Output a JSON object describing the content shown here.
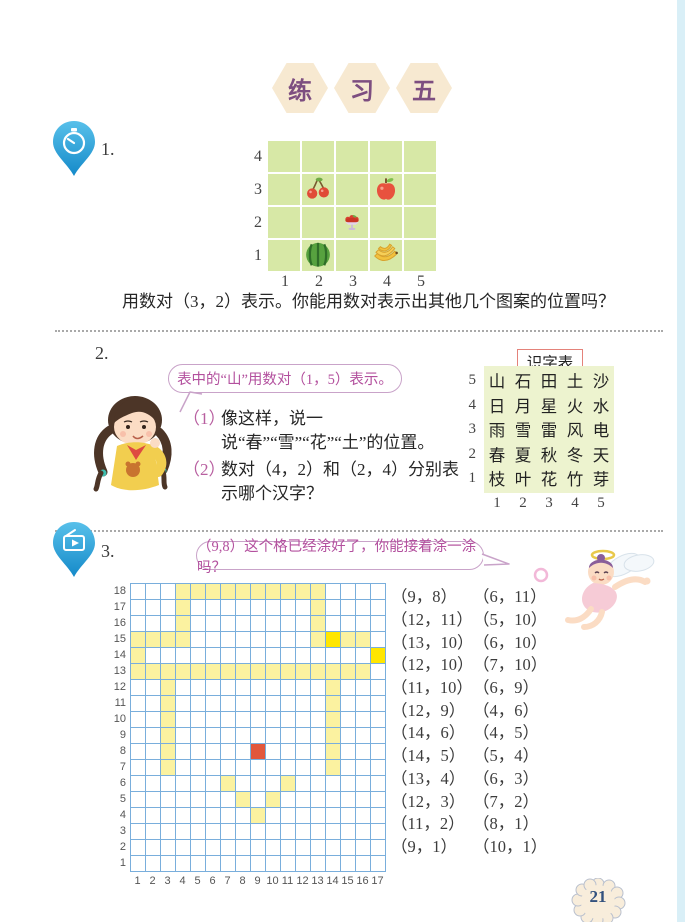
{
  "page": {
    "number": "21"
  },
  "title": {
    "badges": [
      "练",
      "习",
      "五"
    ]
  },
  "exercise1": {
    "number": "1.",
    "chart_data": {
      "type": "grid-placement",
      "x_ticks": [
        "1",
        "2",
        "3",
        "4",
        "5"
      ],
      "y_ticks": [
        "4",
        "3",
        "2",
        "1"
      ],
      "cell_color": "#d7e8a6",
      "items": [
        {
          "name": "cherries",
          "x": 2,
          "y": 3
        },
        {
          "name": "apple",
          "x": 4,
          "y": 3
        },
        {
          "name": "fruit-plate",
          "x": 3,
          "y": 2
        },
        {
          "name": "watermelon",
          "x": 2,
          "y": 1
        },
        {
          "name": "bananas",
          "x": 4,
          "y": 1
        }
      ]
    },
    "caption_icon": "fruit-plate",
    "caption": "用数对（3，2）表示。你能用数对表示出其他几个图案的位置吗？"
  },
  "exercise2": {
    "number": "2.",
    "bubble": "表中的“山”用数对（1，5）表示。",
    "items": [
      {
        "no": "（1）",
        "text": "像这样，说一说“春”“雪”“花”“土”的位置。"
      },
      {
        "no": "（2）",
        "text": "数对（4，2）和（2，4）分别表示哪个汉字？"
      }
    ],
    "table": {
      "title": "识字表",
      "row_labels": [
        "5",
        "4",
        "3",
        "2",
        "1"
      ],
      "col_labels": [
        "1",
        "2",
        "3",
        "4",
        "5"
      ],
      "rows": [
        [
          "山",
          "石",
          "田",
          "土",
          "沙"
        ],
        [
          "日",
          "月",
          "星",
          "火",
          "水"
        ],
        [
          "雨",
          "雪",
          "雷",
          "风",
          "电"
        ],
        [
          "春",
          "夏",
          "秋",
          "冬",
          "天"
        ],
        [
          "枝",
          "叶",
          "花",
          "竹",
          "芽"
        ]
      ]
    }
  },
  "exercise3": {
    "number": "3.",
    "bubble": "（9,8）这个格已经涂好了，你能接着涂一涂吗？",
    "chart_data": {
      "type": "grid-coloring",
      "cols": 17,
      "rows": 18,
      "colors": {
        "pale_yellow": "#fbf2a0",
        "bright_yellow": "#ffe600",
        "red": "#e2573c",
        "gridline": "#79aedc"
      },
      "yellow_cells": [
        [
          4,
          18
        ],
        [
          5,
          18
        ],
        [
          6,
          18
        ],
        [
          7,
          18
        ],
        [
          8,
          18
        ],
        [
          9,
          18
        ],
        [
          10,
          18
        ],
        [
          11,
          18
        ],
        [
          12,
          18
        ],
        [
          13,
          18
        ],
        [
          4,
          17
        ],
        [
          13,
          17
        ],
        [
          4,
          16
        ],
        [
          13,
          16
        ],
        [
          1,
          15
        ],
        [
          2,
          15
        ],
        [
          3,
          15
        ],
        [
          4,
          15
        ],
        [
          13,
          15
        ],
        [
          15,
          15
        ],
        [
          16,
          15
        ],
        [
          1,
          14
        ],
        [
          1,
          13
        ],
        [
          2,
          13
        ],
        [
          3,
          13
        ],
        [
          4,
          13
        ],
        [
          5,
          13
        ],
        [
          6,
          13
        ],
        [
          7,
          13
        ],
        [
          8,
          13
        ],
        [
          9,
          13
        ],
        [
          10,
          13
        ],
        [
          11,
          13
        ],
        [
          12,
          13
        ],
        [
          13,
          13
        ],
        [
          14,
          13
        ],
        [
          15,
          13
        ],
        [
          16,
          13
        ],
        [
          3,
          12
        ],
        [
          14,
          12
        ],
        [
          3,
          11
        ],
        [
          14,
          11
        ],
        [
          3,
          10
        ],
        [
          14,
          10
        ],
        [
          3,
          9
        ],
        [
          14,
          9
        ],
        [
          3,
          8
        ],
        [
          14,
          8
        ],
        [
          3,
          7
        ],
        [
          14,
          7
        ],
        [
          7,
          6
        ],
        [
          11,
          6
        ],
        [
          8,
          5
        ],
        [
          10,
          5
        ],
        [
          9,
          4
        ]
      ],
      "bright_cells": [
        [
          14,
          15
        ],
        [
          17,
          14
        ]
      ],
      "red_cell": [
        9,
        8
      ]
    },
    "pairs": [
      [
        "（9，8）",
        "（6，11）"
      ],
      [
        "（12，11）",
        "（5，10）"
      ],
      [
        "（13，10）",
        "（6，10）"
      ],
      [
        "（12，10）",
        "（7，10）"
      ],
      [
        "（11，10）",
        "（6，9）"
      ],
      [
        "（12，9）",
        "（4，6）"
      ],
      [
        "（14，6）",
        "（4，5）"
      ],
      [
        "（14，5）",
        "（5，4）"
      ],
      [
        "（13，4）",
        "（6，3）"
      ],
      [
        "（12，3）",
        "（7，2）"
      ],
      [
        "（11，2）",
        "（8，1）"
      ],
      [
        "（9，1）",
        "（10，1）"
      ]
    ]
  }
}
